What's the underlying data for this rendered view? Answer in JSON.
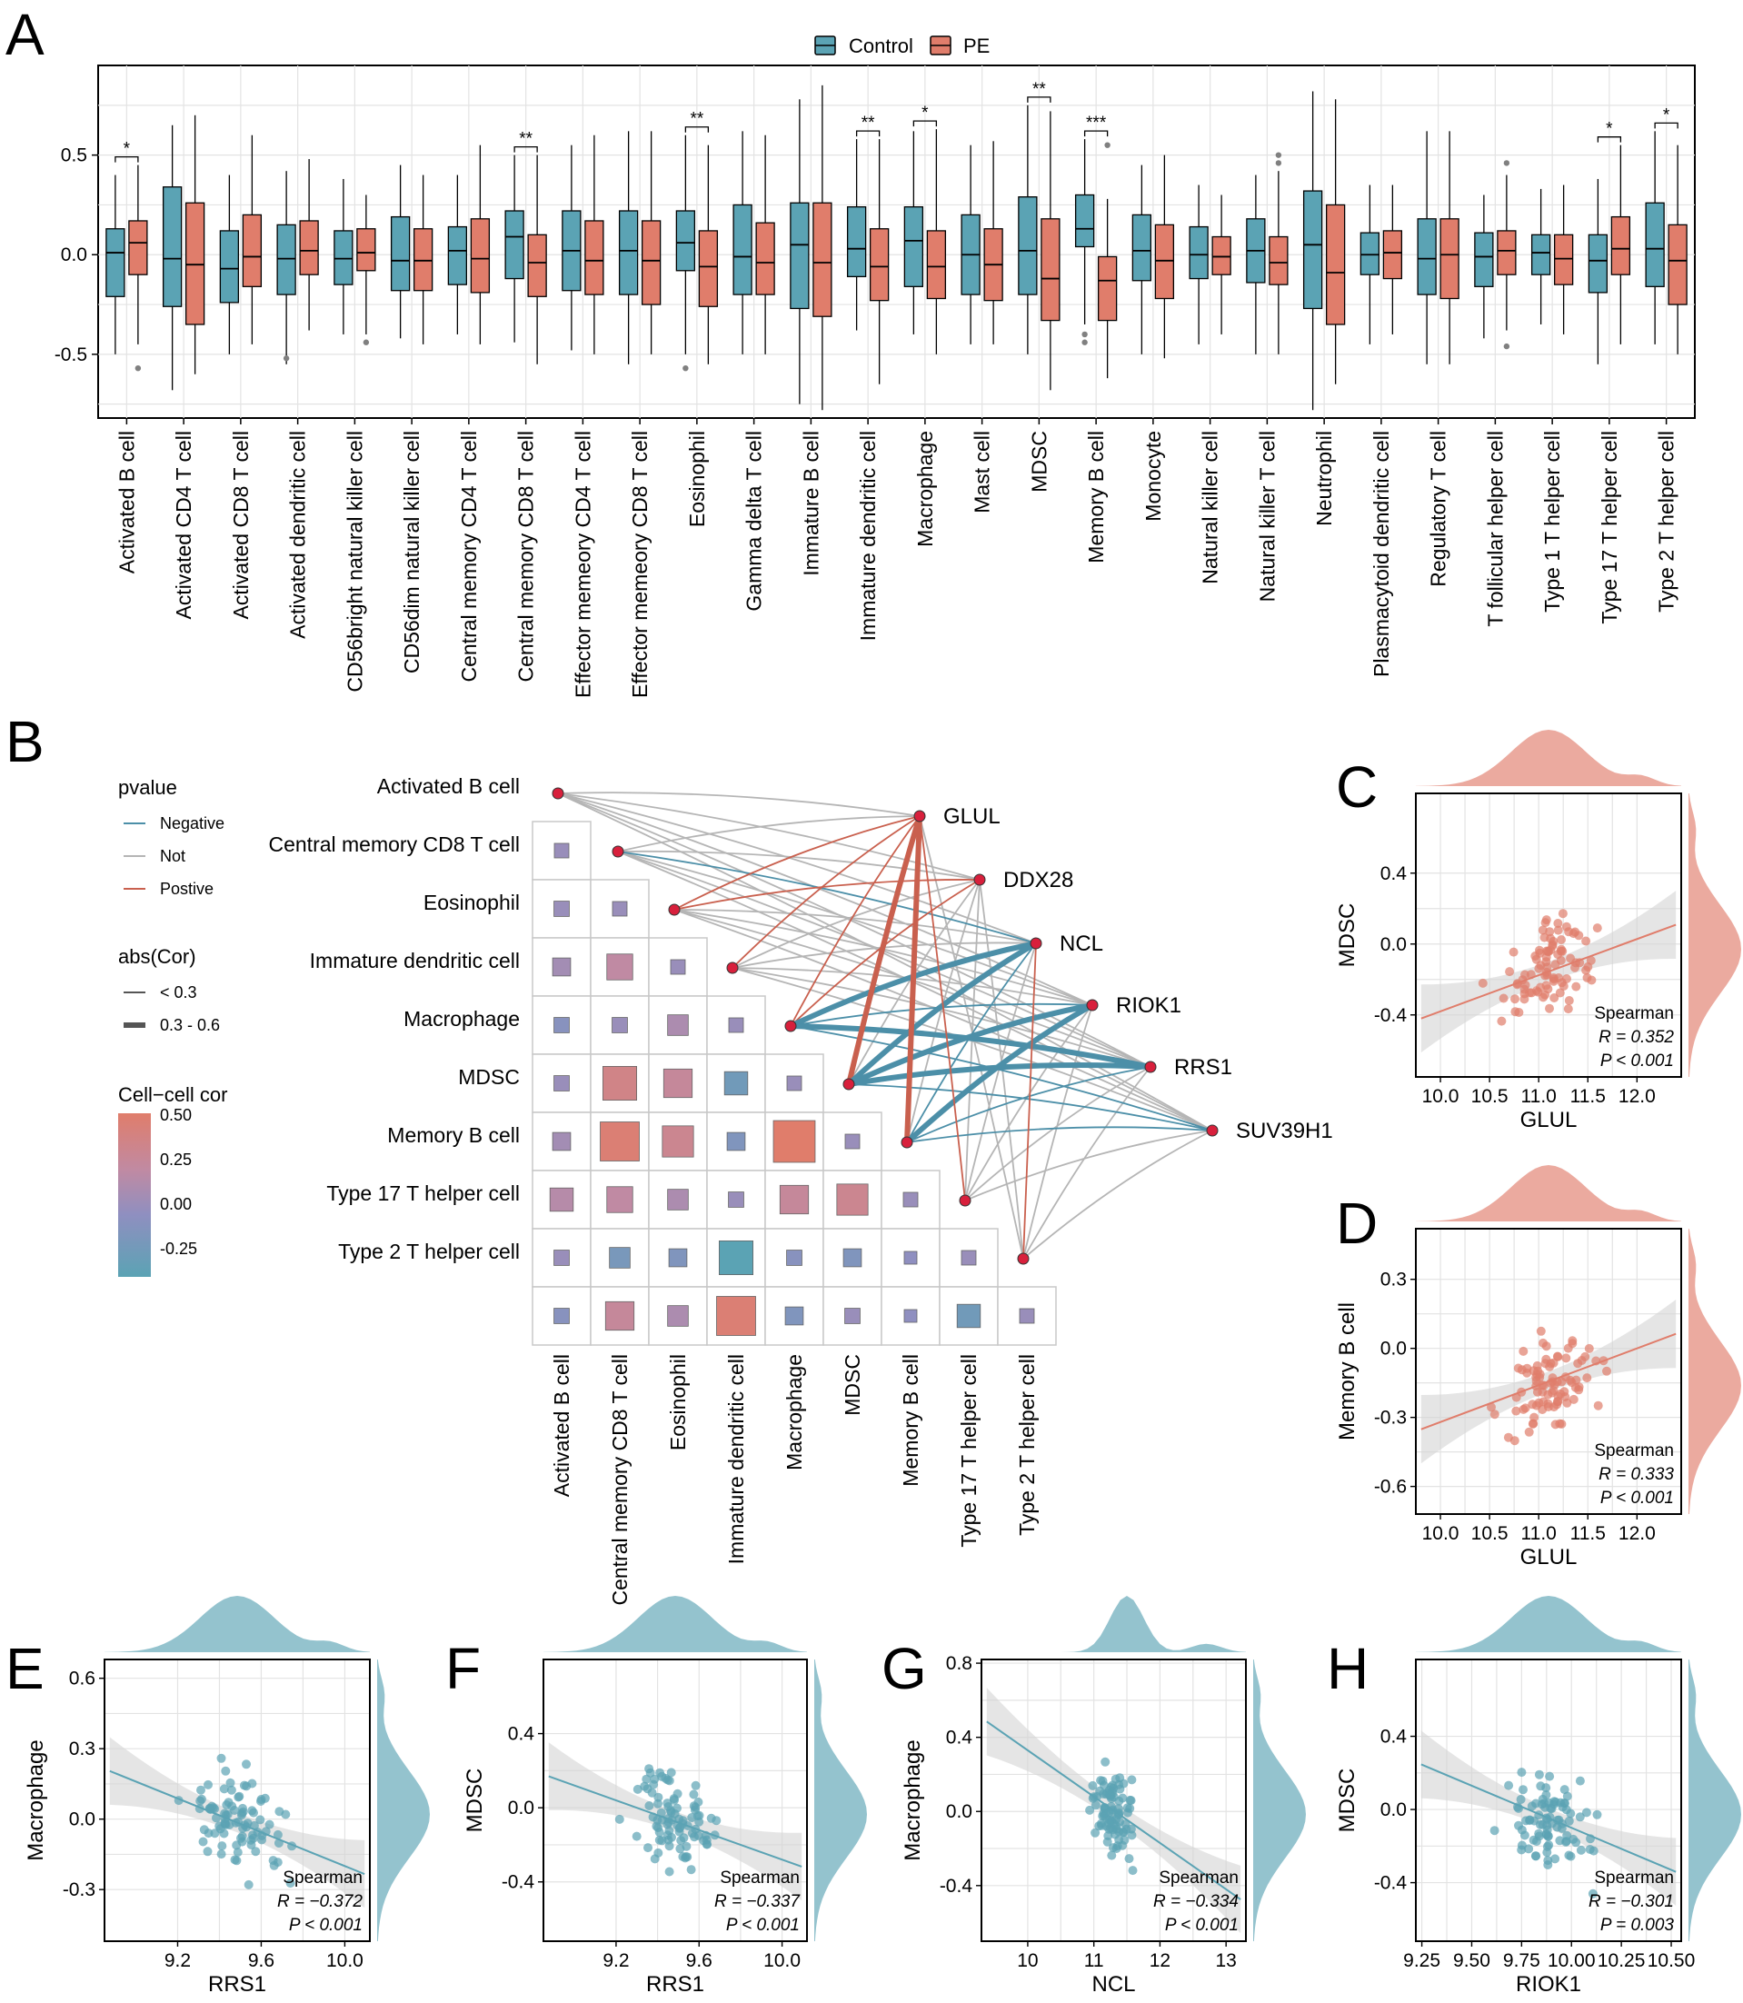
{
  "panels": {
    "A": "A",
    "B": "B",
    "C": "C",
    "D": "D",
    "E": "E",
    "F": "F",
    "G": "G",
    "H": "H"
  },
  "colors": {
    "control": "#5ba3b4",
    "pe": "#e07d6b",
    "negative": "#4c8fa8",
    "not": "#b5b5b5",
    "positive": "#c9604e",
    "node": "#d8203c"
  },
  "chart_data": [
    {
      "panel": "A",
      "type": "box",
      "legend": [
        "Control",
        "PE"
      ],
      "ylim": [
        -0.82,
        0.95
      ],
      "yticks": [
        0.5,
        0.0,
        -0.5
      ],
      "ytick_labels": [
        "0.5",
        "0.0",
        "-0.5"
      ],
      "categories": [
        "Activated B cell",
        "Activated CD4 T cell",
        "Activated CD8 T cell",
        "Activated dendritic cell",
        "CD56bright natural killer cell",
        "CD56dim natural killer cell",
        "Central memory CD4 T cell",
        "Central memory CD8 T cell",
        "Effector memeory CD4 T cell",
        "Effector memeory CD8 T cell",
        "Eosinophil",
        "Gamma delta T cell",
        "Immature  B cell",
        "Immature dendritic cell",
        "Macrophage",
        "Mast cell",
        "MDSC",
        "Memory B cell",
        "Monocyte",
        "Natural killer cell",
        "Natural killer T cell",
        "Neutrophil",
        "Plasmacytoid dendritic cell",
        "Regulatory T cell",
        "T follicular helper cell",
        "Type 1 T helper cell",
        "Type 17 T helper cell",
        "Type 2 T helper cell"
      ],
      "series": [
        {
          "name": "Control",
          "boxes": [
            [
              -0.5,
              -0.21,
              0.01,
              0.13,
              0.4
            ],
            [
              -0.68,
              -0.26,
              -0.02,
              0.34,
              0.65
            ],
            [
              -0.5,
              -0.24,
              -0.07,
              0.12,
              0.4
            ],
            [
              -0.55,
              -0.2,
              -0.02,
              0.15,
              0.42
            ],
            [
              -0.4,
              -0.15,
              -0.02,
              0.12,
              0.38
            ],
            [
              -0.42,
              -0.18,
              -0.03,
              0.19,
              0.45
            ],
            [
              -0.4,
              -0.15,
              0.02,
              0.14,
              0.4
            ],
            [
              -0.44,
              -0.12,
              0.09,
              0.22,
              0.5
            ],
            [
              -0.48,
              -0.18,
              0.02,
              0.22,
              0.55
            ],
            [
              -0.55,
              -0.2,
              0.02,
              0.22,
              0.62
            ],
            [
              -0.5,
              -0.08,
              0.06,
              0.22,
              0.6
            ],
            [
              -0.5,
              -0.2,
              -0.01,
              0.25,
              0.62
            ],
            [
              -0.75,
              -0.27,
              0.05,
              0.26,
              0.78
            ],
            [
              -0.38,
              -0.11,
              0.03,
              0.24,
              0.58
            ],
            [
              -0.4,
              -0.16,
              0.07,
              0.24,
              0.62
            ],
            [
              -0.45,
              -0.2,
              0.0,
              0.2,
              0.55
            ],
            [
              -0.5,
              -0.2,
              0.02,
              0.29,
              0.75
            ],
            [
              -0.35,
              0.04,
              0.13,
              0.3,
              0.58
            ],
            [
              -0.5,
              -0.13,
              0.02,
              0.2,
              0.45
            ],
            [
              -0.45,
              -0.12,
              0.0,
              0.14,
              0.35
            ],
            [
              -0.5,
              -0.14,
              0.02,
              0.18,
              0.4
            ],
            [
              -0.78,
              -0.27,
              0.05,
              0.32,
              0.82
            ],
            [
              -0.45,
              -0.1,
              0.0,
              0.11,
              0.35
            ],
            [
              -0.55,
              -0.2,
              -0.02,
              0.18,
              0.62
            ],
            [
              -0.42,
              -0.16,
              -0.01,
              0.11,
              0.3
            ],
            [
              -0.35,
              -0.1,
              0.01,
              0.1,
              0.33
            ],
            [
              -0.55,
              -0.19,
              -0.03,
              0.1,
              0.38
            ],
            [
              -0.45,
              -0.16,
              0.03,
              0.26,
              0.62
            ]
          ]
        },
        {
          "name": "PE",
          "boxes": [
            [
              -0.45,
              -0.1,
              0.06,
              0.17,
              0.45
            ],
            [
              -0.6,
              -0.35,
              -0.05,
              0.26,
              0.7
            ],
            [
              -0.45,
              -0.16,
              -0.01,
              0.2,
              0.6
            ],
            [
              -0.38,
              -0.1,
              0.02,
              0.17,
              0.48
            ],
            [
              -0.4,
              -0.08,
              0.01,
              0.13,
              0.3
            ],
            [
              -0.45,
              -0.18,
              -0.03,
              0.13,
              0.4
            ],
            [
              -0.45,
              -0.19,
              -0.02,
              0.18,
              0.55
            ],
            [
              -0.55,
              -0.21,
              -0.04,
              0.1,
              0.5
            ],
            [
              -0.5,
              -0.2,
              -0.03,
              0.17,
              0.6
            ],
            [
              -0.5,
              -0.25,
              -0.03,
              0.17,
              0.62
            ],
            [
              -0.55,
              -0.26,
              -0.06,
              0.12,
              0.55
            ],
            [
              -0.5,
              -0.2,
              -0.04,
              0.16,
              0.6
            ],
            [
              -0.78,
              -0.31,
              -0.04,
              0.26,
              0.85
            ],
            [
              -0.65,
              -0.23,
              -0.06,
              0.13,
              0.58
            ],
            [
              -0.5,
              -0.22,
              -0.06,
              0.12,
              0.63
            ],
            [
              -0.45,
              -0.23,
              -0.05,
              0.13,
              0.57
            ],
            [
              -0.68,
              -0.33,
              -0.12,
              0.18,
              0.72
            ],
            [
              -0.62,
              -0.33,
              -0.13,
              -0.01,
              0.28
            ],
            [
              -0.52,
              -0.22,
              -0.03,
              0.15,
              0.5
            ],
            [
              -0.4,
              -0.1,
              -0.01,
              0.09,
              0.3
            ],
            [
              -0.5,
              -0.15,
              -0.04,
              0.09,
              0.42
            ],
            [
              -0.65,
              -0.35,
              -0.09,
              0.25,
              0.78
            ],
            [
              -0.4,
              -0.12,
              0.01,
              0.12,
              0.35
            ],
            [
              -0.55,
              -0.22,
              0.0,
              0.18,
              0.62
            ],
            [
              -0.38,
              -0.1,
              0.02,
              0.12,
              0.4
            ],
            [
              -0.4,
              -0.15,
              -0.02,
              0.1,
              0.35
            ],
            [
              -0.45,
              -0.1,
              0.03,
              0.19,
              0.55
            ],
            [
              -0.5,
              -0.25,
              -0.03,
              0.15,
              0.55
            ]
          ]
        }
      ],
      "outliers": [
        [
          0,
          -0.57,
          1
        ],
        [
          3,
          -0.52,
          0
        ],
        [
          4,
          -0.44,
          1
        ],
        [
          10,
          -0.57,
          0
        ],
        [
          17,
          -0.4,
          0
        ],
        [
          17,
          -0.44,
          0
        ],
        [
          17,
          0.55,
          1
        ],
        [
          20,
          0.46,
          1
        ],
        [
          20,
          0.5,
          1
        ],
        [
          24,
          0.46,
          1
        ],
        [
          24,
          -0.46,
          1
        ]
      ],
      "significance": [
        [
          0,
          "*"
        ],
        [
          7,
          "**"
        ],
        [
          10,
          "**"
        ],
        [
          13,
          "**"
        ],
        [
          14,
          "*"
        ],
        [
          16,
          "**"
        ],
        [
          17,
          "***"
        ],
        [
          26,
          "*"
        ],
        [
          27,
          "*"
        ]
      ]
    },
    {
      "panel": "B",
      "type": "heatmap",
      "cells": [
        "Activated B cell",
        "Central memory CD8 T cell",
        "Eosinophil",
        "Immature dendritic cell",
        "Macrophage",
        "MDSC",
        "Memory B cell",
        "Type 17 T helper cell",
        "Type 2 T helper cell"
      ],
      "genes": [
        "GLUL",
        "DDX28",
        "NCL",
        "RIOK1",
        "RRS1",
        "SUV39H1"
      ],
      "matrix": [
        [
          0.0
        ],
        [
          0.05,
          0.0
        ],
        [
          0.1,
          0.25,
          0.0
        ],
        [
          -0.05,
          0.05,
          0.15,
          0.0
        ],
        [
          0.05,
          0.4,
          0.3,
          -0.2,
          0.0
        ],
        [
          0.1,
          0.5,
          0.35,
          -0.1,
          0.55,
          0.0
        ],
        [
          0.2,
          0.25,
          0.15,
          0.05,
          0.3,
          0.35,
          0.0
        ],
        [
          0.05,
          -0.15,
          -0.1,
          -0.4,
          -0.05,
          -0.1,
          0.0,
          0.0
        ],
        [
          -0.05,
          0.3,
          0.15,
          0.5,
          -0.1,
          0.05,
          0.0,
          -0.2,
          0.0
        ]
      ],
      "legend": {
        "pvalue_title": "pvalue",
        "pvalue_items": [
          "Negative",
          "Not",
          "Postive"
        ],
        "abs_title": "abs(Cor)",
        "abs_items": [
          "< 0.3",
          "0.3 - 0.6"
        ],
        "color_title": "Cell−cell cor",
        "color_ticks": [
          "0.50",
          "0.25",
          "0.00",
          "-0.25"
        ]
      },
      "links": [
        [
          0,
          0,
          "n",
          1
        ],
        [
          0,
          1,
          "n",
          1
        ],
        [
          0,
          2,
          "n",
          1
        ],
        [
          0,
          3,
          "n",
          1
        ],
        [
          0,
          4,
          "n",
          1
        ],
        [
          0,
          5,
          "n",
          1
        ],
        [
          1,
          0,
          "n",
          1
        ],
        [
          1,
          1,
          "n",
          1
        ],
        [
          1,
          2,
          "g",
          1
        ],
        [
          1,
          3,
          "n",
          1
        ],
        [
          1,
          4,
          "n",
          1
        ],
        [
          1,
          5,
          "n",
          1
        ],
        [
          2,
          0,
          "r",
          1
        ],
        [
          2,
          1,
          "r",
          1
        ],
        [
          2,
          2,
          "n",
          1
        ],
        [
          2,
          3,
          "n",
          1
        ],
        [
          2,
          4,
          "n",
          1
        ],
        [
          2,
          5,
          "n",
          1
        ],
        [
          3,
          0,
          "r",
          1
        ],
        [
          3,
          1,
          "n",
          1
        ],
        [
          3,
          2,
          "n",
          1
        ],
        [
          3,
          3,
          "n",
          1
        ],
        [
          3,
          4,
          "n",
          1
        ],
        [
          3,
          5,
          "n",
          1
        ],
        [
          4,
          0,
          "r",
          1
        ],
        [
          4,
          1,
          "r",
          1
        ],
        [
          4,
          2,
          "g",
          2
        ],
        [
          4,
          3,
          "g",
          1
        ],
        [
          4,
          4,
          "g",
          2
        ],
        [
          4,
          5,
          "g",
          1
        ],
        [
          5,
          0,
          "r",
          2
        ],
        [
          5,
          1,
          "n",
          1
        ],
        [
          5,
          2,
          "g",
          2
        ],
        [
          5,
          3,
          "g",
          2
        ],
        [
          5,
          4,
          "g",
          2
        ],
        [
          5,
          5,
          "g",
          1
        ],
        [
          6,
          0,
          "r",
          2
        ],
        [
          6,
          1,
          "n",
          1
        ],
        [
          6,
          2,
          "g",
          1
        ],
        [
          6,
          3,
          "g",
          2
        ],
        [
          6,
          4,
          "g",
          1
        ],
        [
          6,
          5,
          "g",
          1
        ],
        [
          7,
          0,
          "r",
          1
        ],
        [
          7,
          1,
          "n",
          1
        ],
        [
          7,
          2,
          "n",
          1
        ],
        [
          7,
          3,
          "n",
          1
        ],
        [
          7,
          4,
          "n",
          1
        ],
        [
          7,
          5,
          "n",
          1
        ],
        [
          8,
          0,
          "n",
          1
        ],
        [
          8,
          1,
          "n",
          1
        ],
        [
          8,
          2,
          "r",
          1
        ],
        [
          8,
          3,
          "n",
          1
        ],
        [
          8,
          4,
          "n",
          1
        ],
        [
          8,
          5,
          "n",
          1
        ]
      ]
    },
    {
      "panel": "C",
      "type": "scatter",
      "xlabel": "GLUL",
      "ylabel": "MDSC",
      "xlim": [
        9.75,
        12.45
      ],
      "ylim": [
        -0.75,
        0.85
      ],
      "xticks": [
        "10.0",
        "10.5",
        "11.0",
        "11.5",
        "12.0"
      ],
      "yticks": [
        "0.4",
        "0.0",
        "-0.4"
      ],
      "slope": 0.204,
      "intercept": -2.42,
      "stat": [
        "Spearman",
        "R = 0.352",
        "P < 0.001"
      ],
      "tone": "pe"
    },
    {
      "panel": "D",
      "type": "scatter",
      "xlabel": "GLUL",
      "ylabel": "Memory B cell",
      "xlim": [
        9.75,
        12.45
      ],
      "ylim": [
        -0.72,
        0.52
      ],
      "xticks": [
        "10.0",
        "10.5",
        "11.0",
        "11.5",
        "12.0"
      ],
      "yticks": [
        "0.3",
        "0.0",
        "-0.3",
        "-0.6"
      ],
      "slope": 0.16,
      "intercept": -1.92,
      "stat": [
        "Spearman",
        "R = 0.333",
        "P < 0.001"
      ],
      "tone": "pe"
    },
    {
      "panel": "E",
      "type": "scatter",
      "xlabel": "RRS1",
      "ylabel": "Macrophage",
      "xlim": [
        8.85,
        10.12
      ],
      "ylim": [
        -0.52,
        0.68
      ],
      "xticks": [
        "9.2",
        "9.6",
        "10.0"
      ],
      "yticks": [
        "0.6",
        "0.3",
        "0.0",
        "-0.3"
      ],
      "slope": -0.36,
      "intercept": 3.4,
      "stat": [
        "Spearman",
        "R = −0.372",
        "P < 0.001"
      ],
      "tone": "control"
    },
    {
      "panel": "F",
      "type": "scatter",
      "xlabel": "RRS1",
      "ylabel": "MDSC",
      "xlim": [
        8.85,
        10.12
      ],
      "ylim": [
        -0.72,
        0.8
      ],
      "xticks": [
        "9.2",
        "9.6",
        "10.0"
      ],
      "yticks": [
        "0.4",
        "0.0",
        "-0.4"
      ],
      "slope": -0.4,
      "intercept": 3.72,
      "stat": [
        "Spearman",
        "R = −0.337",
        "P < 0.001"
      ],
      "tone": "control"
    },
    {
      "panel": "G",
      "type": "scatter",
      "xlabel": "NCL",
      "ylabel": "Macrophage",
      "xlim": [
        9.3,
        13.3
      ],
      "ylim": [
        -0.7,
        0.82
      ],
      "xticks": [
        "10",
        "11",
        "12",
        "13"
      ],
      "yticks": [
        "0.8",
        "0.4",
        "0.0",
        "-0.4"
      ],
      "slope": -0.25,
      "intercept": 2.83,
      "stat": [
        "Spearman",
        "R = −0.334",
        "P < 0.001"
      ],
      "tone": "control"
    },
    {
      "panel": "H",
      "type": "scatter",
      "xlabel": "RIOK1",
      "ylabel": "MDSC",
      "xlim": [
        9.22,
        10.55
      ],
      "ylim": [
        -0.72,
        0.82
      ],
      "xticks": [
        "9.25",
        "9.50",
        "9.75",
        "10.00",
        "10.25",
        "10.50"
      ],
      "yticks": [
        "0.4",
        "0.0",
        "-0.4"
      ],
      "slope": -0.46,
      "intercept": 4.5,
      "stat": [
        "Spearman",
        "R = −0.301",
        "P = 0.003"
      ],
      "tone": "control"
    }
  ]
}
